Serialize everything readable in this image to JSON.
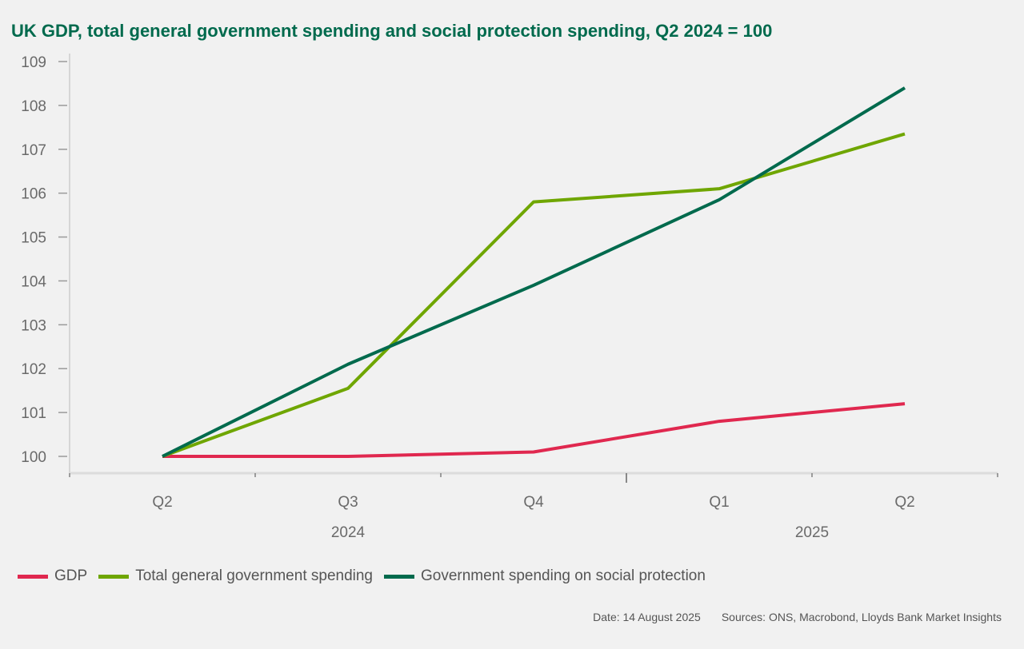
{
  "chart_data": {
    "type": "line",
    "title": "UK GDP, total general government spending and social protection spending, Q2 2024 = 100",
    "xlabel": "",
    "ylabel": "",
    "categories": [
      "Q2",
      "Q3",
      "Q4",
      "Q1",
      "Q2"
    ],
    "year_labels": [
      {
        "label": "2024",
        "span": [
          "Q2",
          "Q3",
          "Q4"
        ]
      },
      {
        "label": "2025",
        "span": [
          "Q1",
          "Q2"
        ]
      }
    ],
    "ylim": [
      100,
      109
    ],
    "yticks": [
      100,
      101,
      102,
      103,
      104,
      105,
      106,
      107,
      108,
      109
    ],
    "grid": false,
    "legend_position": "bottom-left",
    "series": [
      {
        "name": "GDP",
        "color": "#e0284f",
        "values": [
          100.0,
          100.0,
          100.1,
          100.8,
          101.2
        ]
      },
      {
        "name": "Total general government spending",
        "color": "#6fa600",
        "values": [
          100.0,
          101.55,
          105.8,
          106.1,
          107.35
        ]
      },
      {
        "name": "Government spending on social protection",
        "color": "#006a4d",
        "values": [
          100.0,
          102.1,
          103.9,
          105.85,
          108.4
        ]
      }
    ]
  },
  "footer": {
    "date": "Date: 14 August 2025",
    "sources": "Sources: ONS, Macrobond, Lloyds Bank Market Insights"
  }
}
